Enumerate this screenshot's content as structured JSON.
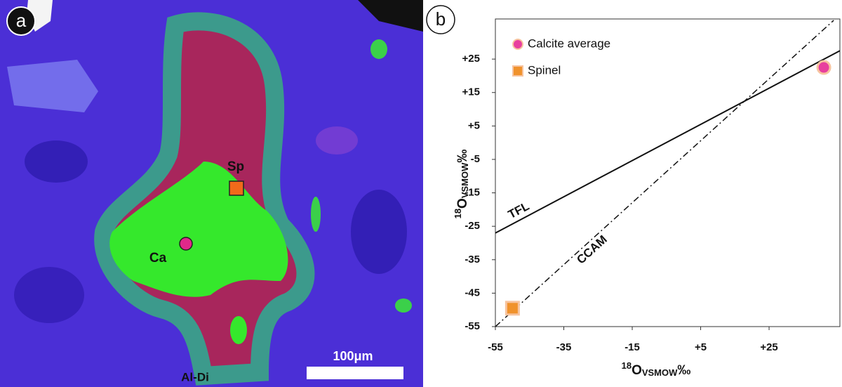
{
  "panel_a": {
    "label": "a",
    "annotations": [
      "Sp",
      "Ca",
      "Al-Di"
    ],
    "scale_bar": "100μm"
  },
  "panel_b_label": "b",
  "chart_data": {
    "type": "scatter",
    "x_label": {
      "sup": "18",
      "main": "O",
      "sub": "VSMOW",
      "unit": "‰"
    },
    "y_label": {
      "sup": "18",
      "main": "O",
      "sub": "VSMOW",
      "unit": "‰"
    },
    "xlim": [
      -55,
      45.7
    ],
    "ylim": [
      -55,
      37
    ],
    "xticks": [
      -55,
      -35,
      -15,
      {
        "value": 5,
        "label": "+5"
      },
      {
        "value": 25,
        "label": "+25"
      }
    ],
    "yticks": [
      {
        "value": 25,
        "label": "+25"
      },
      {
        "value": 15,
        "label": "+15"
      },
      {
        "value": 5,
        "label": "+5"
      },
      -5,
      -15,
      -25,
      -35,
      -45,
      -55
    ],
    "series": [
      {
        "name": "Calcite average",
        "color": "#e8409e",
        "marker": "circle",
        "x": [
          41
        ],
        "values": [
          22.5
        ]
      },
      {
        "name": "Spinel",
        "color": "#f0922c",
        "marker": "square",
        "x": [
          -50
        ],
        "values": [
          -49.5
        ]
      }
    ],
    "lines": [
      {
        "name": "TFL",
        "style": "solid",
        "x": [
          -55,
          45.7
        ],
        "values": [
          -27,
          27.5
        ]
      },
      {
        "name": "CCAM",
        "style": "dashdot",
        "x": [
          -55,
          43.9
        ],
        "values": [
          -55,
          36.6
        ]
      }
    ],
    "legend": "upper left"
  }
}
